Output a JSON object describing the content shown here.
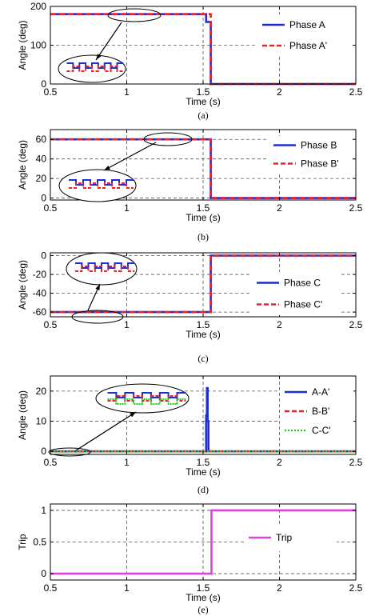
{
  "chart_data": [
    {
      "type": "line",
      "caption": "(a)",
      "xlabel": "Time (s)",
      "ylabel": "Angle (deg)",
      "xlim": [
        0.5,
        2.5
      ],
      "ylim": [
        0,
        200
      ],
      "xticks": [
        0.5,
        1,
        1.5,
        2,
        2.5
      ],
      "yticks": [
        0,
        100,
        200
      ],
      "xtick_labels": [
        "0.5",
        "1",
        "1.5",
        "2",
        "2.5"
      ],
      "ytick_labels": [
        "0",
        "100",
        "200"
      ],
      "grid": "dashed",
      "legend_position": "top-right",
      "series": [
        {
          "name": "Phase A",
          "color": "#1f2fd0",
          "style": "solid",
          "x": [
            0.5,
            1.52,
            1.52,
            1.55,
            1.55,
            2.5
          ],
          "y": [
            180,
            180,
            160,
            160,
            0,
            0
          ]
        },
        {
          "name": "Phase A'",
          "color": "#e8222a",
          "style": "dashed",
          "x": [
            0.5,
            1.55,
            1.55,
            2.5
          ],
          "y": [
            180,
            180,
            0,
            0
          ]
        }
      ],
      "annotation": {
        "type": "zoom-inset"
      }
    },
    {
      "type": "line",
      "caption": "(b)",
      "xlabel": "Time (s)",
      "ylabel": "Angle (deg)",
      "xlim": [
        0.5,
        2.5
      ],
      "ylim": [
        -2,
        70
      ],
      "xticks": [
        0.5,
        1,
        1.5,
        2,
        2.5
      ],
      "yticks": [
        0,
        20,
        40,
        60
      ],
      "xtick_labels": [
        "0.5",
        "1",
        "1.5",
        "2",
        "2.5"
      ],
      "ytick_labels": [
        "0",
        "20",
        "40",
        "60"
      ],
      "grid": "dashed",
      "legend_position": "top-right",
      "series": [
        {
          "name": "Phase B",
          "color": "#1f2fd0",
          "style": "solid",
          "x": [
            0.5,
            1.55,
            1.55,
            2.5
          ],
          "y": [
            60,
            60,
            0,
            0
          ]
        },
        {
          "name": "Phase B'",
          "color": "#e8222a",
          "style": "dashed",
          "x": [
            0.5,
            1.55,
            1.55,
            2.5
          ],
          "y": [
            60,
            60,
            0,
            0
          ]
        }
      ],
      "annotation": {
        "type": "zoom-inset"
      }
    },
    {
      "type": "line",
      "caption": "(c)",
      "xlabel": "Time (s)",
      "ylabel": "Angle (deg)",
      "xlim": [
        0.5,
        2.5
      ],
      "ylim": [
        -65,
        3
      ],
      "xticks": [
        0.5,
        1,
        1.5,
        2,
        2.5
      ],
      "yticks": [
        -60,
        -40,
        -20,
        0
      ],
      "xtick_labels": [
        "0.5",
        "1",
        "1.5",
        "2",
        "2.5"
      ],
      "ytick_labels": [
        "-60",
        "-40",
        "-20",
        "0"
      ],
      "grid": "dashed",
      "legend_position": "right",
      "series": [
        {
          "name": "Phase C",
          "color": "#1f2fd0",
          "style": "solid",
          "x": [
            0.5,
            1.55,
            1.55,
            2.5
          ],
          "y": [
            -60,
            -60,
            0,
            0
          ]
        },
        {
          "name": "Phase C'",
          "color": "#e8222a",
          "style": "dashed",
          "x": [
            0.5,
            1.55,
            1.55,
            2.5
          ],
          "y": [
            -60,
            -60,
            0,
            0
          ]
        }
      ],
      "annotation": {
        "type": "zoom-inset"
      }
    },
    {
      "type": "line",
      "caption": "(d)",
      "xlabel": "Time (s)",
      "ylabel": "Angle (deg)",
      "xlim": [
        0.5,
        2.5
      ],
      "ylim": [
        -1,
        25
      ],
      "xticks": [
        0.5,
        1,
        1.5,
        2,
        2.5
      ],
      "yticks": [
        0,
        10,
        20
      ],
      "xtick_labels": [
        "0.5",
        "1",
        "1.5",
        "2",
        "2.5"
      ],
      "ytick_labels": [
        "0",
        "10",
        "20"
      ],
      "grid": "dashed",
      "legend_position": "top-right",
      "series": [
        {
          "name": "A-A'",
          "color": "#1f2fd0",
          "style": "solid",
          "x": [
            0.5,
            1.52,
            1.52,
            1.525,
            1.525,
            1.53,
            1.53,
            1.535,
            1.535,
            2.5
          ],
          "y": [
            0,
            0,
            12,
            12,
            21,
            21,
            10,
            10,
            0,
            0
          ]
        },
        {
          "name": "B-B'",
          "color": "#e8222a",
          "style": "dashed",
          "x": [
            0.5,
            2.5
          ],
          "y": [
            0,
            0
          ]
        },
        {
          "name": "C-C'",
          "color": "#22cc22",
          "style": "dotted",
          "x": [
            0.5,
            2.5
          ],
          "y": [
            0,
            0
          ]
        }
      ],
      "annotation": {
        "type": "zoom-inset"
      }
    },
    {
      "type": "line",
      "caption": "(e)",
      "xlabel": "Time (s)",
      "ylabel": "Trip",
      "xlim": [
        0.5,
        2.5
      ],
      "ylim": [
        -0.1,
        1.1
      ],
      "xticks": [
        0.5,
        1,
        1.5,
        2,
        2.5
      ],
      "yticks": [
        0,
        0.5,
        1
      ],
      "xtick_labels": [
        "0.5",
        "1",
        "1.5",
        "2",
        "2.5"
      ],
      "ytick_labels": [
        "0",
        "0.5",
        "1"
      ],
      "grid": "dashed",
      "legend_position": "right",
      "series": [
        {
          "name": "Trip",
          "color": "#e040e0",
          "style": "solid",
          "x": [
            0.5,
            1.555,
            1.555,
            2.5
          ],
          "y": [
            0,
            0,
            1,
            1
          ]
        }
      ]
    }
  ]
}
